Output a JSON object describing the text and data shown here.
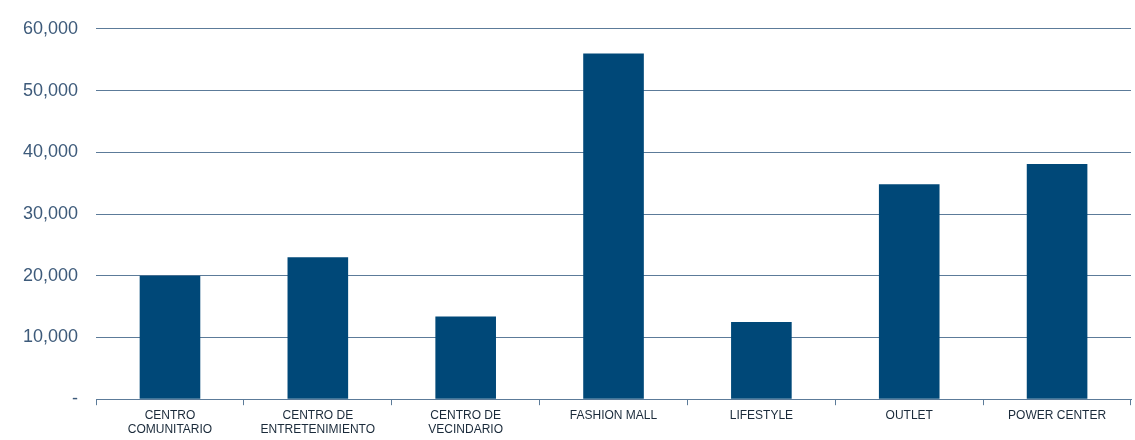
{
  "chart_data": {
    "type": "bar",
    "categories": [
      "CENTRO COMUNITARIO",
      "CENTRO DE ENTRETENIMIENTO",
      "CENTRO DE VECINDARIO",
      "FASHION MALL",
      "LIFESTYLE",
      "OUTLET",
      "POWER CENTER"
    ],
    "values": [
      20000,
      23000,
      13400,
      56000,
      12500,
      34800,
      38100
    ],
    "color": "#004878",
    "ylim": [
      0,
      60000
    ],
    "yticks": [
      {
        "value": 0,
        "label": "-"
      },
      {
        "value": 10000,
        "label": "10,000"
      },
      {
        "value": 20000,
        "label": "20,000"
      },
      {
        "value": 30000,
        "label": "30,000"
      },
      {
        "value": 40000,
        "label": "40,000"
      },
      {
        "value": 50000,
        "label": "50,000"
      },
      {
        "value": 60000,
        "label": "60,000"
      }
    ],
    "grid": "y"
  }
}
